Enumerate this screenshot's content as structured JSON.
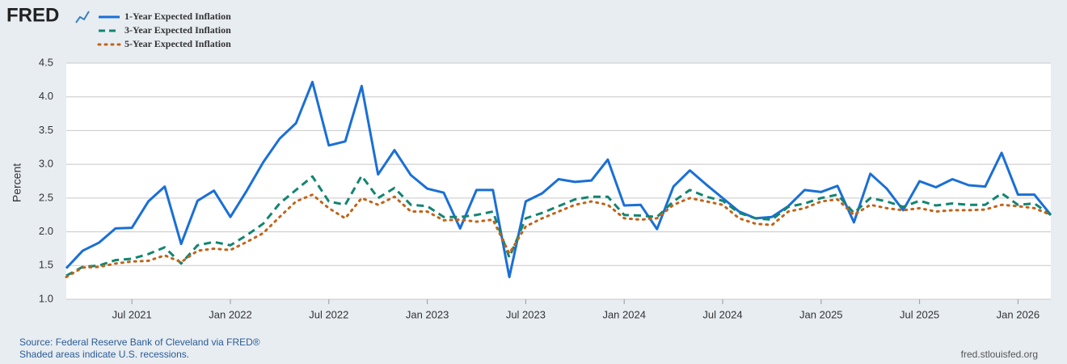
{
  "chart_data": {
    "type": "line",
    "logo": "FRED",
    "ylabel": "Percent",
    "source": "Source: Federal Reserve Bank of Cleveland via FRED®",
    "note": "Shaded areas indicate U.S. recessions.",
    "site": "fred.stlouisfed.org",
    "x": [
      "2021-03",
      "2021-04",
      "2021-05",
      "2021-06",
      "2021-07",
      "2021-08",
      "2021-09",
      "2021-10",
      "2021-11",
      "2021-12",
      "2022-01",
      "2022-02",
      "2022-03",
      "2022-04",
      "2022-05",
      "2022-06",
      "2022-07",
      "2022-08",
      "2022-09",
      "2022-10",
      "2022-11",
      "2022-12",
      "2023-01",
      "2023-02",
      "2023-03",
      "2023-04",
      "2023-05",
      "2023-06",
      "2023-07",
      "2023-08",
      "2023-09",
      "2023-10",
      "2023-11",
      "2023-12",
      "2024-01",
      "2024-02",
      "2024-03",
      "2024-04",
      "2024-05",
      "2024-06",
      "2024-07",
      "2024-08",
      "2024-09",
      "2024-10",
      "2024-11",
      "2024-12",
      "2025-01",
      "2025-02",
      "2025-03",
      "2025-04",
      "2025-05",
      "2025-06",
      "2025-07",
      "2025-08",
      "2025-09",
      "2025-10",
      "2025-11",
      "2025-12",
      "2026-01",
      "2026-02",
      "2026-03"
    ],
    "xticks": [
      {
        "value": "2021-07",
        "label": "Jul 2021"
      },
      {
        "value": "2022-01",
        "label": "Jan 2022"
      },
      {
        "value": "2022-07",
        "label": "Jul 2022"
      },
      {
        "value": "2023-01",
        "label": "Jan 2023"
      },
      {
        "value": "2023-07",
        "label": "Jul 2023"
      },
      {
        "value": "2024-01",
        "label": "Jan 2024"
      },
      {
        "value": "2024-07",
        "label": "Jul 2024"
      },
      {
        "value": "2025-01",
        "label": "Jan 2025"
      },
      {
        "value": "2025-07",
        "label": "Jul 2025"
      },
      {
        "value": "2026-01",
        "label": "Jan 2026"
      }
    ],
    "ylim": [
      1,
      4.5
    ],
    "yticks": [
      {
        "value": 1,
        "label": "1.0"
      },
      1.5,
      {
        "value": 2,
        "label": "2.0"
      },
      2.5,
      {
        "value": 3,
        "label": "3.0"
      },
      3.5,
      {
        "value": 4,
        "label": "4.0"
      },
      4.5
    ],
    "grid": true,
    "series": [
      {
        "name": "1-Year Expected Inflation",
        "color": "#1a6fd6",
        "style": "solid",
        "values": [
          1.46,
          1.72,
          1.84,
          2.05,
          2.06,
          2.45,
          2.67,
          1.82,
          2.46,
          2.61,
          2.22,
          2.61,
          3.03,
          3.38,
          3.61,
          4.22,
          3.28,
          3.34,
          4.16,
          2.85,
          3.21,
          2.84,
          2.64,
          2.58,
          2.05,
          2.62,
          2.62,
          1.33,
          2.45,
          2.57,
          2.78,
          2.74,
          2.76,
          3.07,
          2.39,
          2.4,
          2.04,
          2.67,
          2.91,
          2.7,
          2.5,
          2.3,
          2.2,
          2.22,
          2.38,
          2.62,
          2.59,
          2.68,
          2.14,
          2.86,
          2.64,
          2.32,
          2.75,
          2.66,
          2.78,
          2.69,
          2.67,
          3.17,
          2.55,
          2.55,
          2.25
        ]
      },
      {
        "name": "3-Year Expected Inflation",
        "color": "#138571",
        "style": "dashed",
        "values": [
          1.35,
          1.48,
          1.5,
          1.58,
          1.6,
          1.67,
          1.77,
          1.53,
          1.8,
          1.85,
          1.8,
          1.95,
          2.12,
          2.42,
          2.62,
          2.82,
          2.45,
          2.4,
          2.83,
          2.5,
          2.65,
          2.4,
          2.38,
          2.22,
          2.22,
          2.25,
          2.3,
          1.62,
          2.2,
          2.28,
          2.38,
          2.48,
          2.52,
          2.52,
          2.25,
          2.24,
          2.22,
          2.45,
          2.62,
          2.52,
          2.46,
          2.28,
          2.2,
          2.18,
          2.37,
          2.42,
          2.5,
          2.55,
          2.28,
          2.5,
          2.45,
          2.37,
          2.46,
          2.39,
          2.42,
          2.4,
          2.4,
          2.57,
          2.4,
          2.42,
          2.25
        ]
      },
      {
        "name": "5-Year Expected Inflation",
        "color": "#c0641a",
        "style": "dotted",
        "values": [
          1.33,
          1.47,
          1.48,
          1.53,
          1.56,
          1.57,
          1.65,
          1.55,
          1.72,
          1.75,
          1.73,
          1.85,
          1.98,
          2.22,
          2.45,
          2.55,
          2.35,
          2.2,
          2.5,
          2.4,
          2.52,
          2.3,
          2.3,
          2.17,
          2.18,
          2.15,
          2.18,
          1.68,
          2.08,
          2.2,
          2.3,
          2.4,
          2.45,
          2.4,
          2.2,
          2.18,
          2.2,
          2.4,
          2.5,
          2.45,
          2.4,
          2.2,
          2.12,
          2.1,
          2.3,
          2.35,
          2.45,
          2.48,
          2.25,
          2.4,
          2.35,
          2.32,
          2.35,
          2.3,
          2.32,
          2.32,
          2.33,
          2.4,
          2.38,
          2.35,
          2.25
        ]
      }
    ]
  }
}
